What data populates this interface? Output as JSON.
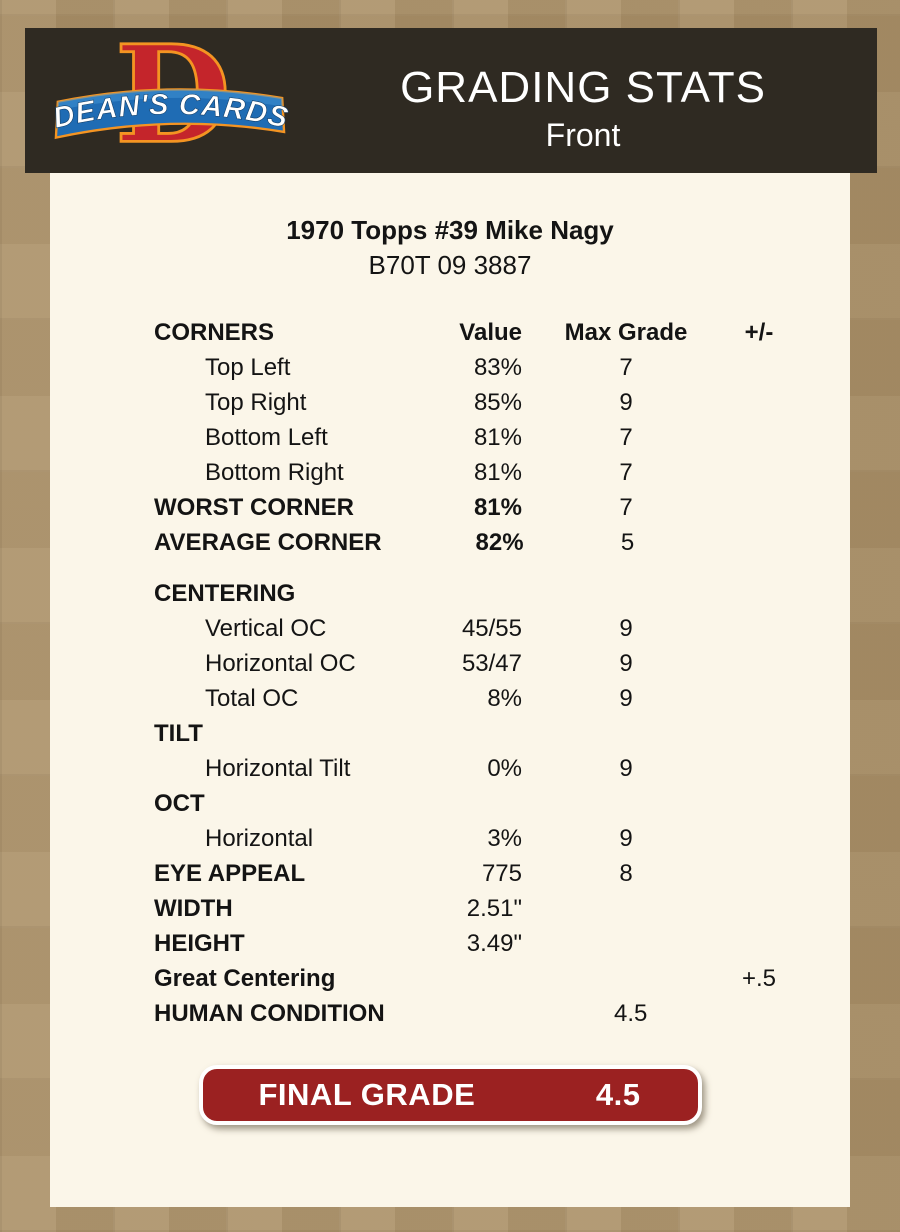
{
  "header": {
    "brand": "DEAN'S CARDS",
    "title": "GRADING STATS",
    "subtitle": "Front"
  },
  "card": {
    "title": "1970 Topps #39 Mike Nagy",
    "code": "B70T 09 3887"
  },
  "table": {
    "rows": [
      {
        "label": "CORNERS",
        "value": "Value",
        "max": "Max Grade",
        "pm": "+/-",
        "bold_label": true,
        "bold_value": true,
        "bold_max": true,
        "bold_pm": true,
        "header": true
      },
      {
        "label": "Top Left",
        "value": "83%",
        "max": "7",
        "indent": true
      },
      {
        "label": "Top Right",
        "value": "85%",
        "max": "9",
        "indent": true
      },
      {
        "label": "Bottom Left",
        "value": "81%",
        "max": "7",
        "indent": true
      },
      {
        "label": "Bottom Right",
        "value": "81%",
        "max": "7",
        "indent": true
      },
      {
        "label": "WORST CORNER",
        "value": "81%",
        "max": "7",
        "bold_label": true,
        "bold_value": true
      },
      {
        "label": "AVERAGE CORNER",
        "value": "82%",
        "max": "5",
        "bold_label": true,
        "bold_value": true
      },
      {
        "label": "CENTERING",
        "bold_label": true,
        "gap_before": true
      },
      {
        "label": "Vertical OC",
        "value": "45/55",
        "max": "9",
        "indent": true
      },
      {
        "label": "Horizontal OC",
        "value": "53/47",
        "max": "9",
        "indent": true
      },
      {
        "label": "Total OC",
        "value": "8%",
        "max": "9",
        "indent": true
      },
      {
        "label": "TILT",
        "bold_label": true
      },
      {
        "label": "Horizontal Tilt",
        "value": "0%",
        "max": "9",
        "indent": true
      },
      {
        "label": "OCT",
        "bold_label": true
      },
      {
        "label": "Horizontal",
        "value": "3%",
        "max": "9",
        "indent": true
      },
      {
        "label": "EYE APPEAL",
        "value": "775",
        "max": "8",
        "bold_label": true
      },
      {
        "label": "WIDTH",
        "value": "2.51\"",
        "bold_label": true
      },
      {
        "label": "HEIGHT",
        "value": "3.49\"",
        "bold_label": true
      },
      {
        "label": "Great Centering",
        "pm": "+.5",
        "bold_label": true
      },
      {
        "label": "HUMAN CONDITION",
        "max": "4.5",
        "bold_label": true
      }
    ]
  },
  "final_grade": {
    "label": "FINAL GRADE",
    "value": "4.5"
  },
  "colors": {
    "page_background": "#ab9169",
    "header_background": "#2f2a22",
    "panel_background": "#fbf6e9",
    "final_grade_red": "#9b2121",
    "logo_red": "#c4252b",
    "logo_blue": "#1f6cb4",
    "logo_orange": "#f49422"
  }
}
